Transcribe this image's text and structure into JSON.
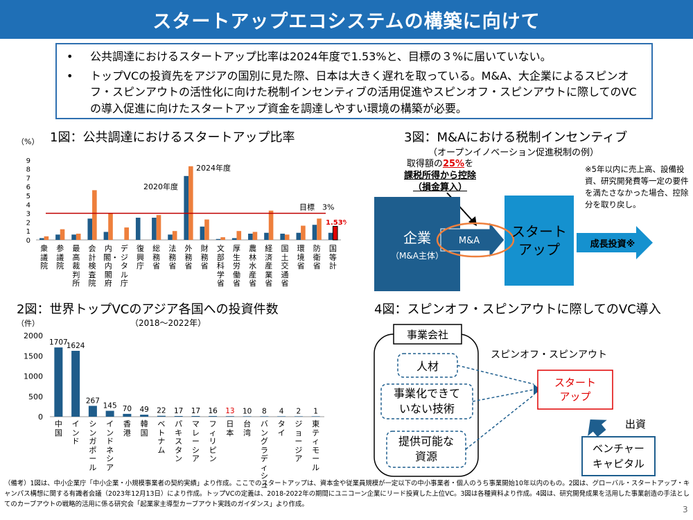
{
  "title": "スタートアップエコシステムの構築に向けて",
  "bullets": [
    "公共調達におけるスタートアップ比率は2024年度で1.53%と、目標の３%に届いていない。",
    "トップVCの投資先をアジアの国別に見た際、日本は大きく遅れを取っている。M&A、大企業によるスピンオフ・スピンアウトの活性化に向けた税制インセンティブの活用促進やスピンオフ・スピンアウトに際してのVCの導入促進に向けたスタートアップ資金を調達しやすい環境の構築が必要。"
  ],
  "bullet_marker": "•",
  "fig1": {
    "title": "1図：公共調達におけるスタートアップ比率",
    "unit": "（%）",
    "legend_2020": "2020年度",
    "legend_2024": "2024年度",
    "target_label": "目標　3%",
    "value_label": "1.53%",
    "colors": {
      "y2020": "#1f5c8a",
      "y2024": "#ee7f3c",
      "highlight": "#e00000",
      "target": "#c00000"
    }
  },
  "fig2": {
    "title": "2図：世界トップVCのアジア各国への投資件数",
    "unit": "（件）",
    "period": "（2018〜2022年）",
    "colors": {
      "bar": "#1f5c8a",
      "japan_label": "#e00000"
    }
  },
  "fig3": {
    "title": "3図：M&Aにおける税制インセンティブ",
    "subtitle": "（オープンイノベーション促進税制の例）",
    "annot_line1_prefix": "取得額の",
    "annot_line1_pct": "25%",
    "annot_line1_suffix": "を",
    "annot_line2": "課税所得から控除",
    "annot_line3": "（損金算入）",
    "company": "企業",
    "company_sub": "（M&A主体）",
    "ma": "M&A",
    "startup_line1": "スタート",
    "startup_line2": "アップ",
    "growth": "成長投資※",
    "note": "※5年以内に売上高、設備投資、研究開発費等一定の要件を満たさなかった場合、控除分を取り戻し。"
  },
  "fig4": {
    "title": "4図：スピンオフ・スピンアウトに際してのVC導入",
    "company": "事業会社",
    "item1": "人材",
    "item2_l1": "事業化できて",
    "item2_l2": "いない技術",
    "item3_l1": "提供可能な",
    "item3_l2": "資源",
    "spin": "スピンオフ・スピンアウト",
    "startup_l1": "スタート",
    "startup_l2": "アップ",
    "invest": "出資",
    "vc_l1": "ベンチャー",
    "vc_l2": "キャピタル"
  },
  "footnote": "（備考）1図は、中小企業庁「中小企業・小規模事業者の契約実績」より作成。ここでのスタートアップは、資本金や従業員規模が一定以下の中小事業者・個人のうち事業開始10年以内のもの。2図は、グローバル・スタートアップ・キャンパス構想に関する有識者会議（2023年12月13日）により作成。トップVCの定義は、2018-2022年の期間にユニコーン企業にリード投資した上位VC。3図は各種資料より作成。4図は、研究開発成果を活用した事業創造の手法としてのカーブアウトの戦略的活用に係る研究会「起業家主導型カーブアウト実践のガイダンス」より作成。",
  "page_number": "3",
  "chart_data": [
    {
      "type": "bar",
      "title": "1図：公共調達におけるスタートアップ比率",
      "ylabel": "（%）",
      "ylim": [
        0,
        9
      ],
      "yticks": [
        "0",
        "1",
        "2",
        "3",
        "4",
        "5",
        "6",
        "7",
        "8",
        "9"
      ],
      "categories": [
        "衆議院",
        "参議院",
        "最高裁判所",
        "会計検査院",
        "内閣・内閣府",
        "デジタル庁",
        "復興庁",
        "総務省",
        "法務省",
        "外務省",
        "財務省",
        "文部科学省",
        "厚生労働省",
        "農林水産省",
        "経済産業省",
        "国土交通省",
        "環境省",
        "防衛省",
        "国等計"
      ],
      "series": [
        {
          "name": "2020年度",
          "values": [
            0.2,
            0.6,
            0.6,
            2.4,
            0.9,
            null,
            2.5,
            2.5,
            0.6,
            7.2,
            1.5,
            0.1,
            0.2,
            0.7,
            0.8,
            0.7,
            0.8,
            1.7,
            0.8
          ]
        },
        {
          "name": "2024年度",
          "values": [
            0.4,
            1.2,
            0.7,
            5.6,
            3.0,
            1.4,
            null,
            2.8,
            1.0,
            8.3,
            2.3,
            0.3,
            1.0,
            0.9,
            3.3,
            0.6,
            1.6,
            2.4,
            1.53
          ]
        }
      ],
      "target": 3,
      "annotations": [
        "2020年度",
        "2024年度",
        "目標　3%",
        "1.53%"
      ]
    },
    {
      "type": "bar",
      "title": "2図：世界トップVCのアジア各国への投資件数",
      "subtitle": "（2018〜2022年）",
      "ylabel": "（件）",
      "ylim": [
        0,
        2000
      ],
      "yticks": [
        "0",
        "500",
        "1000",
        "1500",
        "2000"
      ],
      "categories": [
        "中国",
        "インド",
        "シンガポール",
        "インドネシア",
        "香港",
        "韓国",
        "ベトナム",
        "パキスタン",
        "マレーシア",
        "フィリピン",
        "日本",
        "台湾",
        "バングラディシュ",
        "タイ",
        "ジョージア",
        "東ティモール"
      ],
      "values": [
        1707,
        1624,
        267,
        145,
        70,
        49,
        22,
        17,
        17,
        16,
        13,
        10,
        8,
        4,
        2,
        1
      ],
      "highlight": "日本"
    }
  ]
}
